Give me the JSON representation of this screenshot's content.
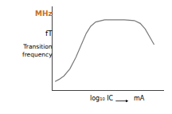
{
  "chart_data": {
    "type": "line",
    "x": [
      0.0,
      0.08,
      0.18,
      0.3,
      0.42,
      0.54,
      0.63,
      0.72,
      0.82,
      1.0,
      1.2,
      1.4,
      1.6,
      1.72,
      1.82,
      1.92,
      2.0
    ],
    "values": [
      0.04,
      0.07,
      0.12,
      0.22,
      0.38,
      0.58,
      0.72,
      0.82,
      0.88,
      0.91,
      0.91,
      0.91,
      0.9,
      0.86,
      0.78,
      0.66,
      0.56
    ],
    "color": "#7a7a7a",
    "xlim": [
      -0.05,
      2.2
    ],
    "ylim": [
      -0.08,
      1.1
    ],
    "xticks": [],
    "yticks": [],
    "tick_labels": false,
    "grid": false,
    "annotations": [
      {
        "text": "MHz",
        "color": "#c87020"
      },
      {
        "text": "fT"
      },
      {
        "text": "Transition\nfrequency"
      },
      {
        "text": "log₁₀ IC"
      },
      {
        "text": "mA"
      }
    ]
  }
}
